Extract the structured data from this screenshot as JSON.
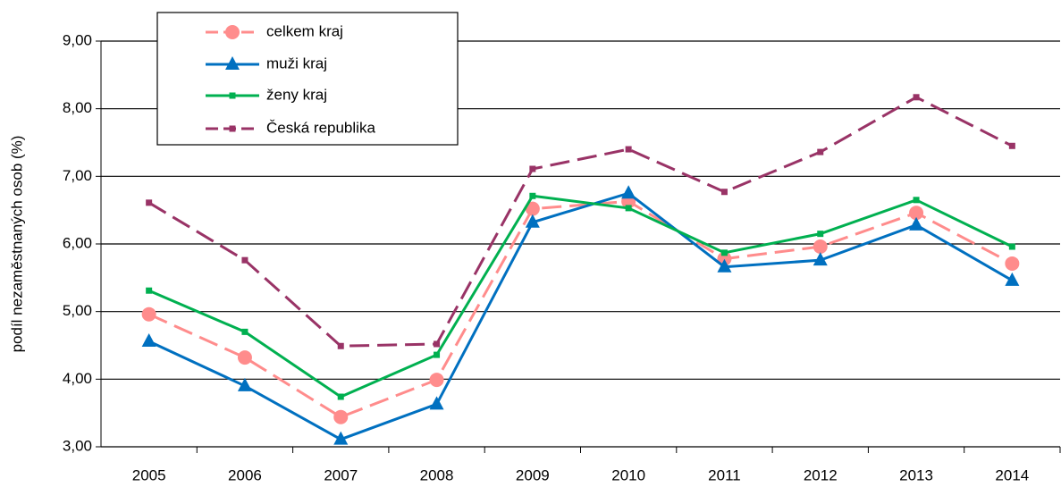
{
  "chart_data": {
    "type": "line",
    "y_label": "podíl nezaměstnaných osob (%)",
    "categories": [
      "2005",
      "2006",
      "2007",
      "2008",
      "2009",
      "2010",
      "2011",
      "2012",
      "2013",
      "2014"
    ],
    "series": [
      {
        "name": "celkem kraj",
        "color": "#ff8c8c",
        "dashed": true,
        "marker": "circle",
        "values": [
          4.96,
          4.32,
          3.44,
          3.99,
          6.52,
          6.63,
          5.78,
          5.96,
          6.46,
          5.71
        ]
      },
      {
        "name": "muži kraj",
        "color": "#0070c0",
        "dashed": false,
        "marker": "triangle",
        "values": [
          4.56,
          3.9,
          3.11,
          3.63,
          6.32,
          6.75,
          5.66,
          5.76,
          6.28,
          5.46
        ]
      },
      {
        "name": "ženy kraj",
        "color": "#00b050",
        "dashed": false,
        "marker": "square",
        "values": [
          5.31,
          4.7,
          3.74,
          4.36,
          6.71,
          6.53,
          5.87,
          6.15,
          6.65,
          5.96
        ]
      },
      {
        "name": "Česká republika",
        "color": "#993366",
        "dashed": true,
        "marker": "square",
        "values": [
          6.61,
          5.76,
          4.49,
          4.52,
          7.11,
          7.4,
          6.77,
          7.36,
          8.17,
          7.45
        ]
      }
    ],
    "ylim": [
      3,
      9
    ],
    "yticks": [
      {
        "value": 3,
        "label": "3,00"
      },
      {
        "value": 4,
        "label": "4,00"
      },
      {
        "value": 5,
        "label": "5,00"
      },
      {
        "value": 6,
        "label": "6,00"
      },
      {
        "value": 7,
        "label": "7,00"
      },
      {
        "value": 8,
        "label": "8,00"
      },
      {
        "value": 9,
        "label": "9,00"
      }
    ],
    "grid": true,
    "legend": "upper left"
  }
}
